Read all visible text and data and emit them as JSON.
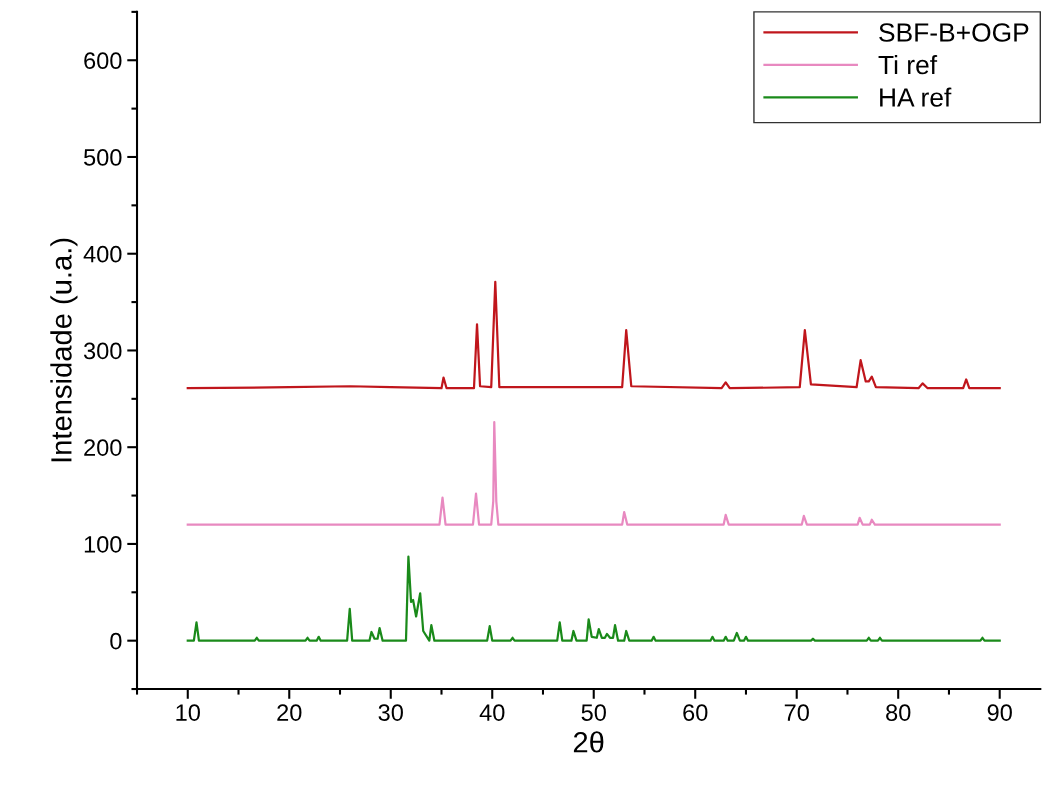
{
  "chart_data": {
    "type": "line",
    "xlabel": "2θ",
    "ylabel": "Intensidade (u.a.)",
    "xlim": [
      5,
      94
    ],
    "ylim": [
      -50,
      650
    ],
    "xticks": [
      {
        "value": 5,
        "label": null
      },
      10,
      {
        "value": 15,
        "label": null
      },
      20,
      {
        "value": 25,
        "label": null
      },
      30,
      {
        "value": 35,
        "label": null
      },
      40,
      {
        "value": 45,
        "label": null
      },
      50,
      {
        "value": 55,
        "label": null
      },
      60,
      {
        "value": 65,
        "label": null
      },
      70,
      {
        "value": 75,
        "label": null
      },
      80,
      {
        "value": 85,
        "label": null
      },
      90
    ],
    "yticks": [
      {
        "value": -50,
        "label": null
      },
      0,
      {
        "value": 50,
        "label": null
      },
      100,
      {
        "value": 150,
        "label": null
      },
      200,
      {
        "value": 250,
        "label": null
      },
      300,
      {
        "value": 350,
        "label": null
      },
      400,
      {
        "value": 450,
        "label": null
      },
      500,
      {
        "value": 550,
        "label": null
      },
      600,
      {
        "value": 650,
        "label": null
      }
    ],
    "grid": false,
    "legend": "top right",
    "marker": "none",
    "line_style": "solid",
    "series": [
      {
        "name": "SBF-B+OGP",
        "color": "#c0161c",
        "x": [
          10,
          20,
          26,
          30,
          35.0,
          35.2,
          35.5,
          38.2,
          38.5,
          38.8,
          39.9,
          40.3,
          40.7,
          52.8,
          53.2,
          53.7,
          62.6,
          63.0,
          63.4,
          70.3,
          70.8,
          71.4,
          75.9,
          76.3,
          76.8,
          77.1,
          77.4,
          77.8,
          82.0,
          82.4,
          82.9,
          86.4,
          86.7,
          87.0,
          90
        ],
        "values": [
          261,
          262,
          263,
          262,
          261,
          272,
          261,
          261,
          327,
          263,
          262,
          371,
          262,
          262,
          321,
          263,
          261,
          267,
          261,
          262,
          321,
          265,
          262,
          290,
          268,
          268,
          273,
          262,
          261,
          266,
          261,
          261,
          270,
          261,
          261
        ]
      },
      {
        "name": "Ti ref",
        "color": "#e889c0",
        "x": [
          10,
          34.8,
          35.1,
          35.4,
          38.1,
          38.4,
          38.7,
          39.9,
          40.1,
          40.2,
          40.4,
          40.6,
          52.8,
          53.0,
          53.3,
          62.8,
          63.0,
          63.3,
          70.5,
          70.7,
          71.0,
          76.0,
          76.2,
          76.5,
          77.2,
          77.4,
          77.7,
          90
        ],
        "values": [
          120,
          120,
          148,
          120,
          120,
          152,
          120,
          120,
          144,
          226,
          144,
          120,
          120,
          133,
          120,
          120,
          130,
          120,
          120,
          129,
          120,
          120,
          127,
          120,
          120,
          125,
          120,
          120
        ]
      },
      {
        "name": "HA ref",
        "color": "#1a8a1a",
        "x": [
          10,
          10.6,
          10.86,
          11.1,
          16.6,
          16.8,
          17.0,
          21.6,
          21.8,
          22.0,
          22.7,
          22.9,
          23.1,
          25.7,
          25.96,
          26.2,
          27.9,
          28.1,
          28.4,
          28.7,
          28.9,
          29.2,
          31.5,
          31.74,
          32.0,
          32.2,
          32.5,
          32.9,
          33.2,
          33.8,
          34.0,
          34.3,
          39.5,
          39.75,
          40.0,
          41.8,
          42.0,
          42.2,
          46.4,
          46.65,
          46.9,
          47.8,
          48.0,
          48.3,
          49.3,
          49.5,
          49.8,
          50.3,
          50.5,
          50.8,
          51.1,
          51.3,
          51.6,
          51.9,
          52.1,
          52.4,
          53.0,
          53.2,
          53.5,
          55.7,
          55.9,
          56.1,
          61.5,
          61.7,
          61.9,
          62.8,
          63.0,
          63.2,
          63.8,
          64.1,
          64.4,
          64.8,
          65.0,
          65.2,
          71.4,
          71.6,
          71.8,
          76.9,
          77.1,
          77.3,
          78.0,
          78.2,
          78.4,
          88.1,
          88.3,
          88.5,
          90
        ],
        "values": [
          0,
          0,
          19,
          0,
          0,
          3,
          0,
          0,
          3,
          0,
          0,
          4,
          0,
          0,
          33,
          0,
          0,
          9,
          2,
          2,
          13,
          0,
          0,
          87,
          40,
          42,
          25,
          49,
          10,
          0,
          16,
          0,
          0,
          15,
          0,
          0,
          3,
          0,
          0,
          19,
          0,
          0,
          10,
          0,
          0,
          22,
          4,
          3,
          12,
          3,
          3,
          7,
          3,
          3,
          16,
          0,
          0,
          10,
          0,
          0,
          4,
          0,
          0,
          4,
          0,
          0,
          4,
          0,
          0,
          8,
          0,
          0,
          4,
          0,
          0,
          2,
          0,
          0,
          3,
          0,
          0,
          3,
          0,
          0,
          3,
          0,
          0
        ]
      }
    ]
  }
}
